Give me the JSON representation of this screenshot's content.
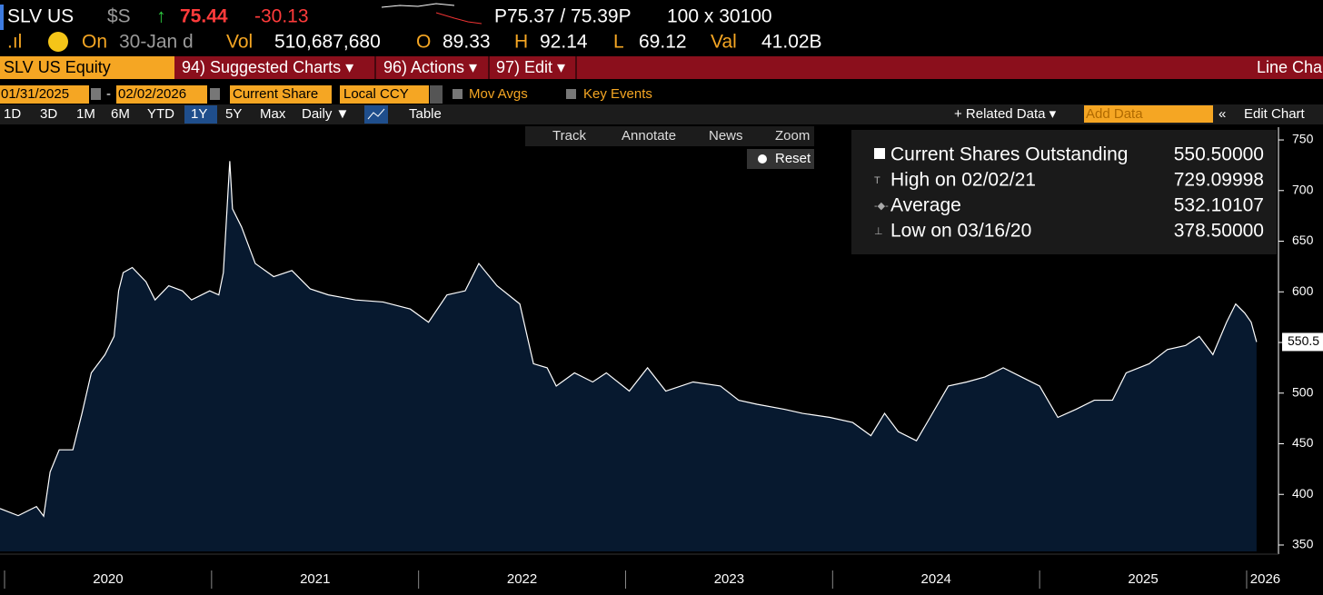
{
  "header": {
    "ticker": "SLV US",
    "currency": "$S",
    "price": "75.44",
    "change": "-30.13",
    "bid_ask": "P75.37 / 75.39P",
    "size": "100 x 30100",
    "on_label": "On",
    "date": "30-Jan d",
    "vol_label": "Vol",
    "vol": "510,687,680",
    "open_label": "O",
    "open": "89.33",
    "high_label": "H",
    "high": "92.14",
    "low_label": "L",
    "low": "69.12",
    "val_label": "Val",
    "val": "41.02B"
  },
  "menu": {
    "security": "SLV US Equity",
    "items": [
      "94) Suggested Charts ▾",
      "96) Actions ▾",
      "97) Edit ▾"
    ],
    "title": "Line Cha"
  },
  "settings": {
    "start": "01/31/2025",
    "dash": "-",
    "end": "02/02/2026",
    "field": "Current Share",
    "ccy": "Local CCY",
    "mov_avgs": "Mov Avgs",
    "key_events": "Key Events"
  },
  "toolbar": {
    "periods": [
      "1D",
      "3D",
      "1M",
      "6M",
      "YTD",
      "1Y",
      "5Y",
      "Max"
    ],
    "frequency": "Daily ▼",
    "table": "Table",
    "related": "+ Related Data ▾",
    "add_data": "Add Data",
    "edit_chart": "Edit Chart"
  },
  "tools": [
    "Track",
    "Annotate",
    "News",
    "Zoom",
    "Reset"
  ],
  "chart_data": {
    "type": "area",
    "color": "#ffffff",
    "fill": "#07192f",
    "x": [
      2019.978,
      2020.066,
      2020.154,
      2020.189,
      2020.22,
      2020.264,
      2020.33,
      2020.374,
      2020.419,
      2020.485,
      2020.529,
      2020.551,
      2020.573,
      2020.617,
      2020.683,
      2020.727,
      2020.793,
      2020.859,
      2020.903,
      2020.991,
      2021.035,
      2021.057,
      2021.088,
      2021.101,
      2021.145,
      2021.211,
      2021.3,
      2021.388,
      2021.476,
      2021.564,
      2021.696,
      2021.828,
      2021.96,
      2022.048,
      2022.137,
      2022.225,
      2022.291,
      2022.379,
      2022.489,
      2022.555,
      2022.621,
      2022.665,
      2022.753,
      2022.841,
      2022.907,
      2023.018,
      2023.106,
      2023.194,
      2023.326,
      2023.458,
      2023.546,
      2023.634,
      2023.767,
      2023.855,
      2023.987,
      2024.097,
      2024.185,
      2024.251,
      2024.317,
      2024.405,
      2024.471,
      2024.559,
      2024.648,
      2024.736,
      2024.824,
      2024.912,
      2025.0,
      2025.088,
      2025.176,
      2025.264,
      2025.352,
      2025.418,
      2025.529,
      2025.617,
      2025.705,
      2025.771,
      2025.837,
      2025.903,
      2025.947,
      2025.991,
      2026.022,
      2026.048
    ],
    "values": [
      386,
      379,
      388,
      378.5,
      422,
      444,
      444,
      480,
      520,
      538,
      556,
      601,
      619,
      624,
      610,
      592,
      606,
      601,
      592,
      601,
      597,
      619,
      729.1,
      682,
      664,
      628,
      615,
      621,
      603,
      597,
      592,
      590,
      583,
      570,
      597,
      601,
      628,
      606,
      588,
      529,
      525,
      507,
      520,
      511,
      520,
      502,
      525,
      502,
      511,
      507,
      493,
      489,
      484,
      480,
      476,
      471,
      458,
      480,
      462,
      453,
      476,
      507,
      511,
      516,
      525,
      516,
      507,
      476,
      484,
      493,
      493,
      520,
      529,
      543,
      547,
      556,
      538,
      570,
      588,
      579,
      570,
      550.5
    ],
    "xlim": [
      2019.978,
      2026.145
    ],
    "ylim": [
      343.7,
      762.6
    ],
    "yticks": [
      350,
      400,
      450,
      500,
      550,
      600,
      650,
      700,
      750
    ],
    "xticks": [
      {
        "value": 2020.5,
        "label": "2020"
      },
      {
        "value": 2021.5,
        "label": "2021"
      },
      {
        "value": 2022.5,
        "label": "2022"
      },
      {
        "value": 2023.5,
        "label": "2023"
      },
      {
        "value": 2024.5,
        "label": "2024"
      },
      {
        "value": 2025.5,
        "label": "2025"
      },
      {
        "value": 2026.09,
        "label": "2026"
      }
    ],
    "year_separators": [
      2020,
      2021,
      2022,
      2023,
      2024,
      2025,
      2026
    ],
    "legend": [
      {
        "label": "Current Shares Outstanding",
        "value": "550.50000"
      },
      {
        "label": "High on 02/02/21",
        "value": "729.09998"
      },
      {
        "label": "Average",
        "value": "532.10107"
      },
      {
        "label": "Low on 03/16/20",
        "value": "378.50000"
      }
    ]
  }
}
